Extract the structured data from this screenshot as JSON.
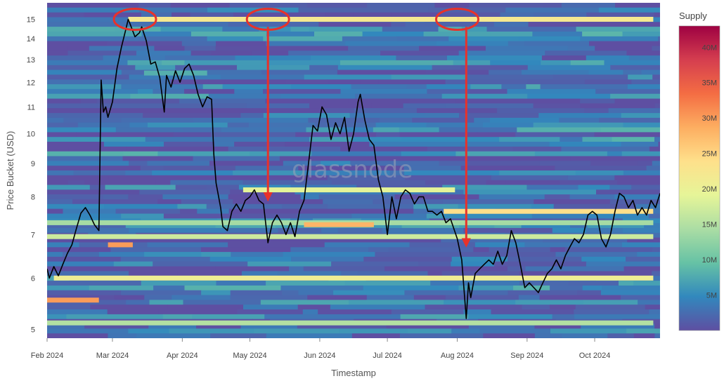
{
  "chart_data": {
    "type": "heatmap",
    "title": "",
    "xlabel": "Timestamp",
    "ylabel": "Price Bucket (USD)",
    "watermark": "glassnode",
    "y_scale": "log",
    "ylim": [
      4.85,
      15.9
    ],
    "xlim": [
      "2024-02-01",
      "2024-10-30"
    ],
    "x_ticks": [
      "Feb 2024",
      "Mar 2024",
      "Apr 2024",
      "May 2024",
      "Jun 2024",
      "Jul 2024",
      "Aug 2024",
      "Sep 2024",
      "Oct 2024"
    ],
    "y_ticks": [
      5,
      6,
      7,
      8,
      9,
      10,
      11,
      12,
      13,
      14,
      15
    ],
    "colorbar": {
      "title": "Supply",
      "min": 0,
      "max": 43000000,
      "ticks": [
        "5M",
        "10M",
        "15M",
        "20M",
        "25M",
        "30M",
        "35M",
        "40M"
      ],
      "colors": [
        "#5e4fa2",
        "#3288bd",
        "#66c2a5",
        "#abdda4",
        "#e6f598",
        "#fee08b",
        "#fdae61",
        "#f46d43",
        "#d53e4f",
        "#9e0142"
      ]
    },
    "heatmap_bands": [
      {
        "price": 15.0,
        "start": "2024-03-08",
        "end": "2024-10-27",
        "supply_m": 22
      },
      {
        "price": 12.4,
        "start": "2024-03-15",
        "end": "2024-04-12",
        "supply_m": 8
      },
      {
        "price": 8.2,
        "start": "2024-04-28",
        "end": "2024-07-31",
        "supply_m": 19
      },
      {
        "price": 7.6,
        "start": "2024-07-26",
        "end": "2024-10-27",
        "supply_m": 24
      },
      {
        "price": 7.3,
        "start": "2024-02-01",
        "end": "2024-10-27",
        "supply_m": 14
      },
      {
        "price": 7.25,
        "start": "2024-05-25",
        "end": "2024-06-25",
        "supply_m": 28
      },
      {
        "price": 6.95,
        "start": "2024-02-01",
        "end": "2024-10-27",
        "supply_m": 17
      },
      {
        "price": 6.75,
        "start": "2024-02-28",
        "end": "2024-03-10",
        "supply_m": 30
      },
      {
        "price": 6.0,
        "start": "2024-02-04",
        "end": "2024-10-27",
        "supply_m": 21
      },
      {
        "price": 5.55,
        "start": "2024-02-01",
        "end": "2024-02-24",
        "supply_m": 30
      },
      {
        "price": 5.12,
        "start": "2024-02-01",
        "end": "2024-10-27",
        "supply_m": 15
      }
    ],
    "price_series": {
      "name": "Price",
      "color": "#000000",
      "points": [
        [
          "2024-02-01",
          6.2
        ],
        [
          "2024-02-02",
          6.0
        ],
        [
          "2024-02-04",
          6.25
        ],
        [
          "2024-02-06",
          6.05
        ],
        [
          "2024-02-08",
          6.3
        ],
        [
          "2024-02-10",
          6.55
        ],
        [
          "2024-02-12",
          6.75
        ],
        [
          "2024-02-14",
          7.15
        ],
        [
          "2024-02-16",
          7.55
        ],
        [
          "2024-02-18",
          7.7
        ],
        [
          "2024-02-20",
          7.5
        ],
        [
          "2024-02-22",
          7.25
        ],
        [
          "2024-02-24",
          7.1
        ],
        [
          "2024-02-25",
          12.1
        ],
        [
          "2024-02-26",
          10.8
        ],
        [
          "2024-02-27",
          11.0
        ],
        [
          "2024-02-28",
          10.6
        ],
        [
          "2024-03-01",
          11.2
        ],
        [
          "2024-03-03",
          12.6
        ],
        [
          "2024-03-05",
          13.6
        ],
        [
          "2024-03-07",
          14.5
        ],
        [
          "2024-03-08",
          15.0
        ],
        [
          "2024-03-09",
          14.7
        ],
        [
          "2024-03-11",
          14.1
        ],
        [
          "2024-03-13",
          14.3
        ],
        [
          "2024-03-14",
          14.6
        ],
        [
          "2024-03-16",
          13.9
        ],
        [
          "2024-03-18",
          12.8
        ],
        [
          "2024-03-20",
          12.9
        ],
        [
          "2024-03-22",
          12.2
        ],
        [
          "2024-03-24",
          10.8
        ],
        [
          "2024-03-25",
          12.3
        ],
        [
          "2024-03-27",
          11.8
        ],
        [
          "2024-03-29",
          12.5
        ],
        [
          "2024-03-31",
          12.0
        ],
        [
          "2024-04-02",
          12.6
        ],
        [
          "2024-04-04",
          12.8
        ],
        [
          "2024-04-06",
          12.3
        ],
        [
          "2024-04-08",
          11.5
        ],
        [
          "2024-04-10",
          11.0
        ],
        [
          "2024-04-12",
          11.4
        ],
        [
          "2024-04-14",
          11.3
        ],
        [
          "2024-04-15",
          9.3
        ],
        [
          "2024-04-16",
          8.4
        ],
        [
          "2024-04-18",
          7.7
        ],
        [
          "2024-04-19",
          7.2
        ],
        [
          "2024-04-21",
          7.1
        ],
        [
          "2024-04-23",
          7.6
        ],
        [
          "2024-04-25",
          7.8
        ],
        [
          "2024-04-27",
          7.6
        ],
        [
          "2024-04-29",
          7.9
        ],
        [
          "2024-05-01",
          8.0
        ],
        [
          "2024-05-03",
          8.2
        ],
        [
          "2024-05-05",
          7.9
        ],
        [
          "2024-05-07",
          7.8
        ],
        [
          "2024-05-09",
          6.8
        ],
        [
          "2024-05-11",
          7.3
        ],
        [
          "2024-05-13",
          7.5
        ],
        [
          "2024-05-15",
          7.3
        ],
        [
          "2024-05-17",
          7.0
        ],
        [
          "2024-05-19",
          7.3
        ],
        [
          "2024-05-21",
          6.95
        ],
        [
          "2024-05-23",
          7.6
        ],
        [
          "2024-05-25",
          7.9
        ],
        [
          "2024-05-27",
          9.0
        ],
        [
          "2024-05-29",
          10.3
        ],
        [
          "2024-05-31",
          10.1
        ],
        [
          "2024-06-02",
          11.0
        ],
        [
          "2024-06-04",
          10.7
        ],
        [
          "2024-06-06",
          9.8
        ],
        [
          "2024-06-08",
          10.4
        ],
        [
          "2024-06-10",
          10.0
        ],
        [
          "2024-06-12",
          10.6
        ],
        [
          "2024-06-14",
          9.4
        ],
        [
          "2024-06-16",
          10.0
        ],
        [
          "2024-06-18",
          11.2
        ],
        [
          "2024-06-19",
          11.5
        ],
        [
          "2024-06-21",
          10.5
        ],
        [
          "2024-06-23",
          9.8
        ],
        [
          "2024-06-25",
          9.6
        ],
        [
          "2024-06-27",
          8.5
        ],
        [
          "2024-06-29",
          8.0
        ],
        [
          "2024-07-01",
          7.0
        ],
        [
          "2024-07-03",
          8.0
        ],
        [
          "2024-07-05",
          7.4
        ],
        [
          "2024-07-07",
          8.0
        ],
        [
          "2024-07-09",
          8.2
        ],
        [
          "2024-07-11",
          8.1
        ],
        [
          "2024-07-13",
          7.8
        ],
        [
          "2024-07-15",
          8.0
        ],
        [
          "2024-07-17",
          8.0
        ],
        [
          "2024-07-19",
          7.6
        ],
        [
          "2024-07-21",
          7.6
        ],
        [
          "2024-07-23",
          7.5
        ],
        [
          "2024-07-25",
          7.6
        ],
        [
          "2024-07-27",
          7.3
        ],
        [
          "2024-07-29",
          7.4
        ],
        [
          "2024-08-01",
          6.9
        ],
        [
          "2024-08-03",
          6.4
        ],
        [
          "2024-08-05",
          5.2
        ],
        [
          "2024-08-06",
          5.9
        ],
        [
          "2024-08-07",
          5.6
        ],
        [
          "2024-08-09",
          6.1
        ],
        [
          "2024-08-11",
          6.2
        ],
        [
          "2024-08-13",
          6.3
        ],
        [
          "2024-08-15",
          6.4
        ],
        [
          "2024-08-17",
          6.3
        ],
        [
          "2024-08-19",
          6.6
        ],
        [
          "2024-08-21",
          6.3
        ],
        [
          "2024-08-23",
          6.5
        ],
        [
          "2024-08-25",
          7.1
        ],
        [
          "2024-08-27",
          6.8
        ],
        [
          "2024-08-29",
          6.3
        ],
        [
          "2024-08-31",
          5.8
        ],
        [
          "2024-09-02",
          5.9
        ],
        [
          "2024-09-04",
          5.8
        ],
        [
          "2024-09-06",
          5.7
        ],
        [
          "2024-09-08",
          5.9
        ],
        [
          "2024-09-10",
          6.1
        ],
        [
          "2024-09-12",
          6.2
        ],
        [
          "2024-09-14",
          6.4
        ],
        [
          "2024-09-16",
          6.2
        ],
        [
          "2024-09-18",
          6.5
        ],
        [
          "2024-09-20",
          6.7
        ],
        [
          "2024-09-22",
          6.9
        ],
        [
          "2024-09-24",
          6.8
        ],
        [
          "2024-09-26",
          7.0
        ],
        [
          "2024-09-28",
          7.5
        ],
        [
          "2024-09-30",
          7.6
        ],
        [
          "2024-10-02",
          7.5
        ],
        [
          "2024-10-04",
          6.9
        ],
        [
          "2024-10-06",
          6.7
        ],
        [
          "2024-10-08",
          7.0
        ],
        [
          "2024-10-10",
          7.6
        ],
        [
          "2024-10-12",
          8.1
        ],
        [
          "2024-10-14",
          8.0
        ],
        [
          "2024-10-16",
          7.7
        ],
        [
          "2024-10-18",
          7.9
        ],
        [
          "2024-10-20",
          7.5
        ],
        [
          "2024-10-22",
          7.7
        ],
        [
          "2024-10-24",
          7.5
        ],
        [
          "2024-10-26",
          7.9
        ],
        [
          "2024-10-28",
          7.7
        ],
        [
          "2024-10-30",
          8.1
        ]
      ]
    },
    "annotations": [
      {
        "type": "circle",
        "x": "2024-03-11",
        "y": 15.0,
        "color": "#e8322a"
      },
      {
        "type": "circle",
        "x": "2024-05-09",
        "y": 15.0,
        "color": "#e8322a"
      },
      {
        "type": "circle",
        "x": "2024-08-01",
        "y": 15.0,
        "color": "#e8322a"
      },
      {
        "type": "arrow",
        "x": "2024-05-09",
        "from_y": 14.6,
        "to_y": 8.0,
        "color": "#e8322a"
      },
      {
        "type": "arrow",
        "x": "2024-08-05",
        "from_y": 14.6,
        "to_y": 6.8,
        "color": "#e8322a"
      }
    ]
  }
}
